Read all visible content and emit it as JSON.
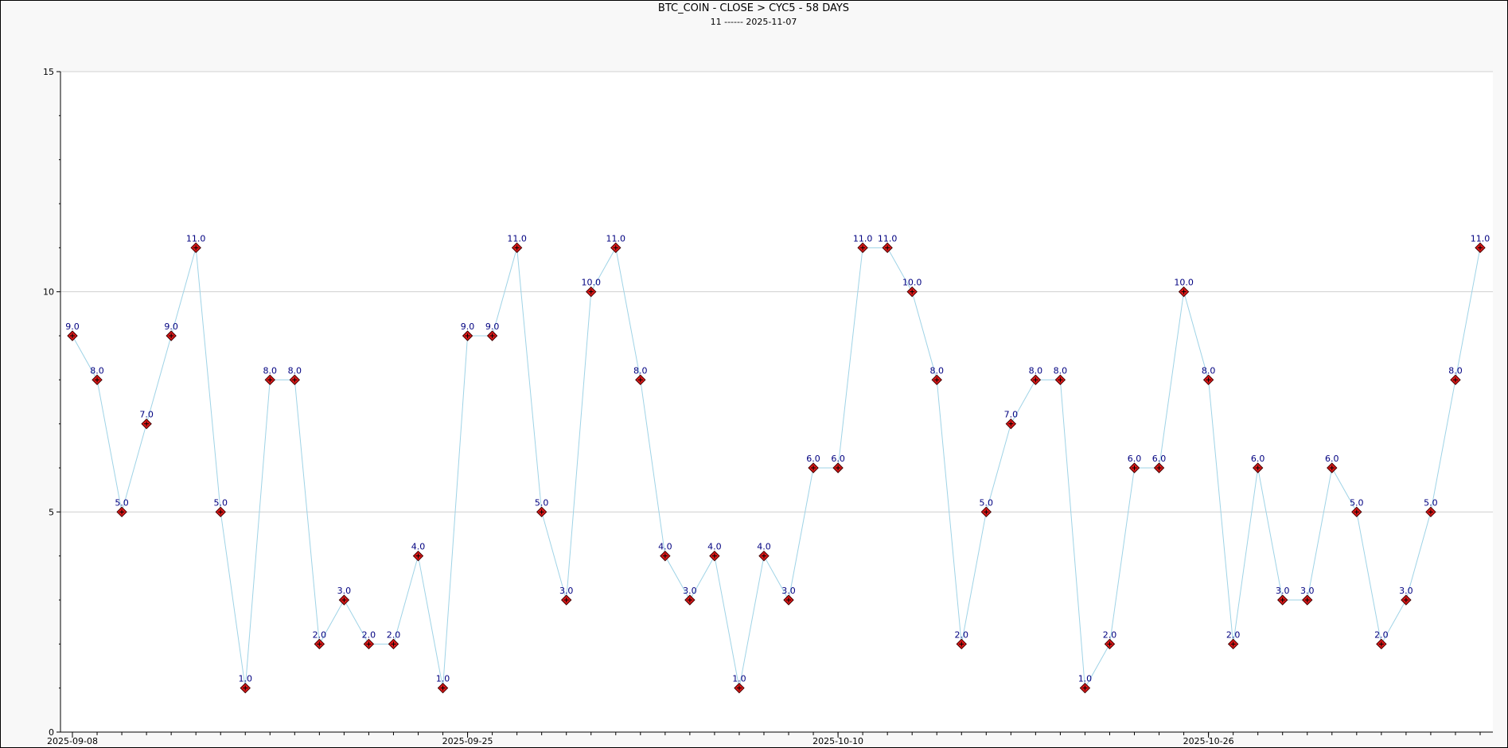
{
  "chart_data": {
    "type": "line",
    "title": "BTC_COIN - CLOSE > CYC5 - 58 DAYS",
    "subtitle": "11 ------ 2025-11-07",
    "xlabel": "",
    "ylabel": "",
    "ylim": [
      0,
      15
    ],
    "yticks": [
      0,
      5,
      10,
      15
    ],
    "grid": true,
    "x_tick_labels": [
      {
        "date": "2025-09-08",
        "index": 0
      },
      {
        "date": "2025-09-25",
        "index": 16
      },
      {
        "date": "2025-10-10",
        "index": 31
      },
      {
        "date": "2025-10-26",
        "index": 46
      }
    ],
    "series": [
      {
        "values": [
          9,
          8,
          5,
          7,
          9,
          11,
          5,
          1,
          8,
          8,
          2,
          3,
          2,
          2,
          4,
          1,
          9,
          9,
          11,
          5,
          3,
          10,
          11,
          8,
          4,
          3,
          4,
          1,
          4,
          3,
          6,
          6,
          11,
          11,
          10,
          8,
          2,
          5,
          7,
          8,
          8,
          1,
          2,
          6,
          6,
          10,
          8,
          2,
          6,
          3,
          3,
          6,
          5,
          2,
          3,
          5,
          8,
          11
        ],
        "labels": [
          "9.0",
          "8.0",
          "5.0",
          "7.0",
          "9.0",
          "11.0",
          "5.0",
          "1.0",
          "8.0",
          "8.0",
          "2.0",
          "3.0",
          "2.0",
          "2.0",
          "4.0",
          "1.0",
          "9.0",
          "9.0",
          "11.0",
          "5.0",
          "3.0",
          "10.0",
          "11.0",
          "8.0",
          "4.0",
          "3.0",
          "4.0",
          "1.0",
          "4.0",
          "3.0",
          "6.0",
          "6.0",
          "11.0",
          "11.0",
          "10.0",
          "8.0",
          "2.0",
          "5.0",
          "7.0",
          "8.0",
          "8.0",
          "1.0",
          "2.0",
          "6.0",
          "6.0",
          "10.0",
          "8.0",
          "2.0",
          "6.0",
          "3.0",
          "3.0",
          "6.0",
          "5.0",
          "2.0",
          "3.0",
          "5.0",
          "8.0",
          "11.0"
        ],
        "line_color": "#9fd3e6",
        "marker_color": "#e01818",
        "label_color": "#000080"
      }
    ]
  }
}
